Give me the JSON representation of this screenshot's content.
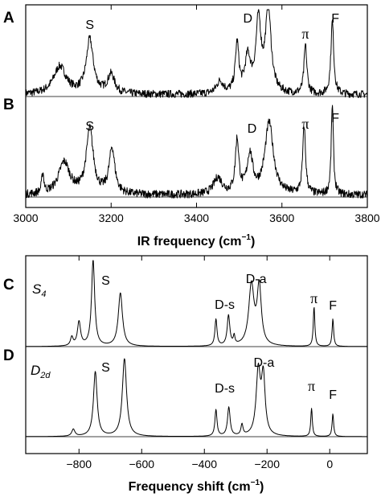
{
  "chart_data": [
    {
      "type": "line",
      "panel": "A",
      "xlabel": "IR frequency (cm-1)",
      "xlim": [
        3000,
        3800
      ],
      "x_ticks": [
        3000,
        3200,
        3400,
        3600,
        3800
      ],
      "y_axis": "arbitrary intensity (no ticks)",
      "peak_labels": [
        {
          "text": "S",
          "x": 3150
        },
        {
          "text": "D",
          "x": 3520
        },
        {
          "text": "π",
          "x": 3655
        },
        {
          "text": "F",
          "x": 3725
        }
      ],
      "series": [
        {
          "values_description": "noisy experimental IR spectrum",
          "peaks": [
            {
              "x": 3080,
              "y": 0.32
            },
            {
              "x": 3150,
              "y": 0.62
            },
            {
              "x": 3200,
              "y": 0.22
            },
            {
              "x": 3455,
              "y": 0.14
            },
            {
              "x": 3495,
              "y": 0.56
            },
            {
              "x": 3520,
              "y": 0.4
            },
            {
              "x": 3545,
              "y": 0.82
            },
            {
              "x": 3568,
              "y": 0.96
            },
            {
              "x": 3655,
              "y": 0.56
            },
            {
              "x": 3718,
              "y": 0.84
            }
          ]
        }
      ]
    },
    {
      "type": "line",
      "panel": "B",
      "xlabel": "IR frequency (cm-1)",
      "xlim": [
        3000,
        3800
      ],
      "x_ticks": [
        3000,
        3200,
        3400,
        3600,
        3800
      ],
      "peak_labels": [
        {
          "text": "S",
          "x": 3150
        },
        {
          "text": "D",
          "x": 3530
        },
        {
          "text": "π",
          "x": 3655
        },
        {
          "text": "F",
          "x": 3725
        }
      ],
      "series": [
        {
          "values_description": "noisy experimental IR spectrum",
          "peaks": [
            {
              "x": 3040,
              "y": 0.22
            },
            {
              "x": 3090,
              "y": 0.35
            },
            {
              "x": 3150,
              "y": 0.7
            },
            {
              "x": 3202,
              "y": 0.5
            },
            {
              "x": 3450,
              "y": 0.18
            },
            {
              "x": 3495,
              "y": 0.58
            },
            {
              "x": 3525,
              "y": 0.42
            },
            {
              "x": 3570,
              "y": 0.78
            },
            {
              "x": 3652,
              "y": 0.74
            },
            {
              "x": 3718,
              "y": 1.0
            }
          ]
        }
      ]
    },
    {
      "type": "line",
      "panel": "C",
      "point_group": "S4",
      "xlabel": "Frequency shift (cm-1)",
      "xlim": [
        -970,
        120
      ],
      "x_ticks": [
        -800,
        -600,
        -400,
        -200,
        0
      ],
      "peak_labels": [
        {
          "text": "S",
          "x": -715
        },
        {
          "text": "D-s",
          "x": -335
        },
        {
          "text": "D-a",
          "x": -235
        },
        {
          "text": "π",
          "x": -50
        },
        {
          "text": "F",
          "x": 10
        }
      ],
      "series": [
        {
          "peaks": [
            {
              "x": -823,
              "y": 0.1
            },
            {
              "x": -800,
              "y": 0.28
            },
            {
              "x": -755,
              "y": 1.0
            },
            {
              "x": -668,
              "y": 0.62
            },
            {
              "x": -363,
              "y": 0.31
            },
            {
              "x": -323,
              "y": 0.35
            },
            {
              "x": -305,
              "y": 0.1
            },
            {
              "x": -250,
              "y": 0.7
            },
            {
              "x": -225,
              "y": 0.68
            },
            {
              "x": -50,
              "y": 0.46
            },
            {
              "x": 10,
              "y": 0.32
            }
          ]
        }
      ]
    },
    {
      "type": "line",
      "panel": "D",
      "point_group": "D2d",
      "xlabel": "Frequency shift (cm-1)",
      "xlim": [
        -970,
        120
      ],
      "x_ticks": [
        -800,
        -600,
        -400,
        -200,
        0
      ],
      "peak_labels": [
        {
          "text": "S",
          "x": -715
        },
        {
          "text": "D-s",
          "x": -335
        },
        {
          "text": "D-a",
          "x": -210
        },
        {
          "text": "π",
          "x": -58
        },
        {
          "text": "F",
          "x": 10
        }
      ],
      "series": [
        {
          "peaks": [
            {
              "x": -818,
              "y": 0.09
            },
            {
              "x": -748,
              "y": 0.83
            },
            {
              "x": -655,
              "y": 1.0
            },
            {
              "x": -363,
              "y": 0.34
            },
            {
              "x": -322,
              "y": 0.37
            },
            {
              "x": -280,
              "y": 0.14
            },
            {
              "x": -228,
              "y": 0.82
            },
            {
              "x": -212,
              "y": 0.74
            },
            {
              "x": -58,
              "y": 0.36
            },
            {
              "x": 10,
              "y": 0.29
            }
          ]
        }
      ]
    }
  ],
  "labels": {
    "panel_a": "A",
    "panel_b": "B",
    "panel_c": "C",
    "panel_d": "D",
    "s4_main": "S",
    "s4_sub": "4",
    "d2d_main": "D",
    "d2d_sub": "2d",
    "top_axis_main": "IR frequency (cm",
    "top_axis_sup": "−1",
    "top_axis_close": ")",
    "bottom_axis_main": "Frequency shift (cm",
    "bottom_axis_sup": "−1",
    "bottom_axis_close": ")"
  }
}
